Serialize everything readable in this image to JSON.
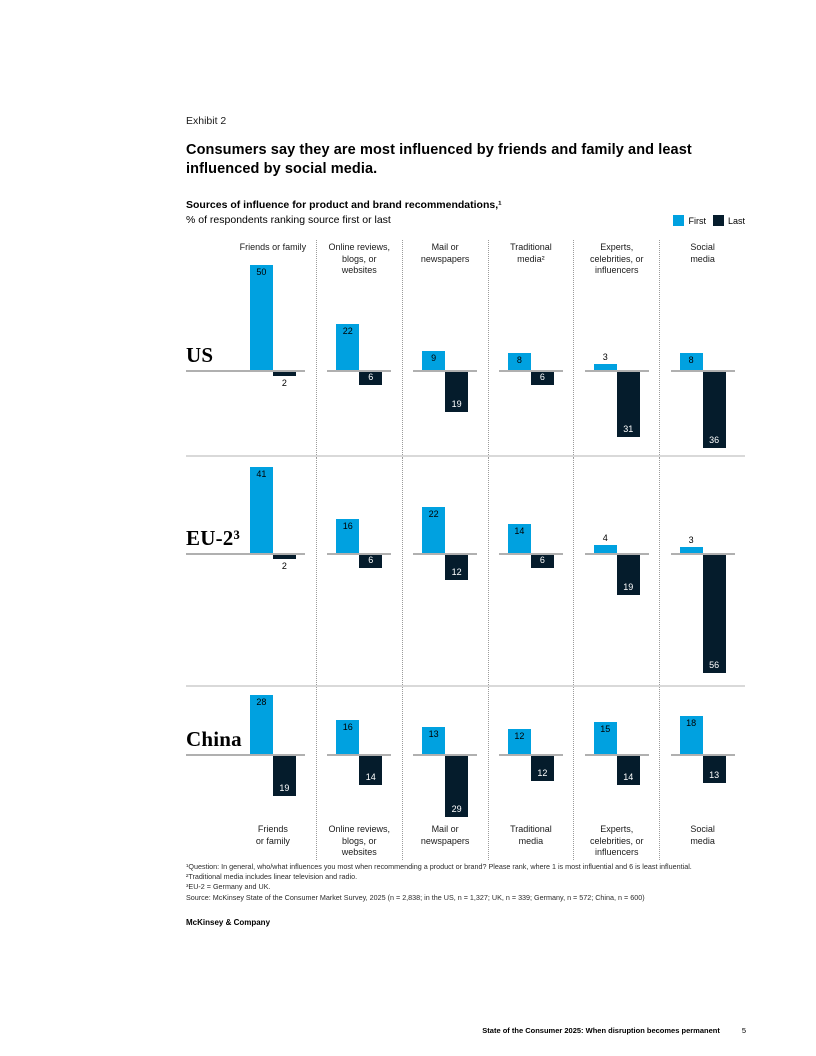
{
  "page": {
    "exhibit_label": "Exhibit 2",
    "title": "Consumers say they are most influenced by friends and family and least influenced by social media.",
    "subtitle_bold": "Sources of influence for product and brand recommendations,¹",
    "subtitle_line2": "% of respondents ranking source first or last",
    "brand": "McKinsey & Company",
    "footer_title": "State of the Consumer 2025: When disruption becomes permanent",
    "footer_page": "5"
  },
  "legend": {
    "first_label": "First",
    "last_label": "Last"
  },
  "chart_data": {
    "type": "bar",
    "title": "Sources of influence for product and brand recommendations",
    "unit": "% of respondents ranking source first or last",
    "orientation": "diverging-vertical",
    "colors": {
      "first": "#00A1E0",
      "last": "#051C2C"
    },
    "series_names": [
      "First",
      "Last"
    ],
    "categories": [
      "Friends or family",
      "Online reviews, blogs, or websites",
      "Mail or newspapers",
      "Traditional media",
      "Experts, celebrities, or influencers",
      "Social media"
    ],
    "categories_top_display": [
      "Friends or family",
      "Online reviews,\nblogs, or\nwebsites",
      "Mail or\nnewspapers",
      "Traditional\nmedia²",
      "Experts,\ncelebrities, or\ninfluencers",
      "Social\nmedia"
    ],
    "categories_bottom_display": [
      "Friends\nor family",
      "Online reviews,\nblogs, or\nwebsites",
      "Mail or\nnewspapers",
      "Traditional\nmedia",
      "Experts,\ncelebrities, or\ninfluencers",
      "Social\nmedia"
    ],
    "rows": [
      {
        "label": "US",
        "label_display": "US",
        "first": [
          50,
          22,
          9,
          8,
          3,
          8
        ],
        "last": [
          2,
          6,
          19,
          6,
          31,
          36
        ]
      },
      {
        "label": "EU-2",
        "label_display": "EU-2³",
        "first": [
          41,
          16,
          22,
          14,
          4,
          3
        ],
        "last": [
          2,
          6,
          12,
          6,
          19,
          56
        ]
      },
      {
        "label": "China",
        "label_display": "China",
        "first": [
          28,
          16,
          13,
          12,
          15,
          18
        ],
        "last": [
          19,
          14,
          29,
          12,
          14,
          13
        ]
      }
    ]
  },
  "footnotes": [
    "¹Question: In general, who/what influences you most when recommending a product or brand? Please rank, where 1 is most influential and 6 is least influential.",
    "²Traditional media includes linear television and radio.",
    "³EU-2 = Germany and UK.",
    "Source: McKinsey State of the Consumer Market Survey, 2025 (n = 2,838; in the US, n = 1,327; UK, n = 339; Germany, n = 572; China, n = 600)"
  ]
}
